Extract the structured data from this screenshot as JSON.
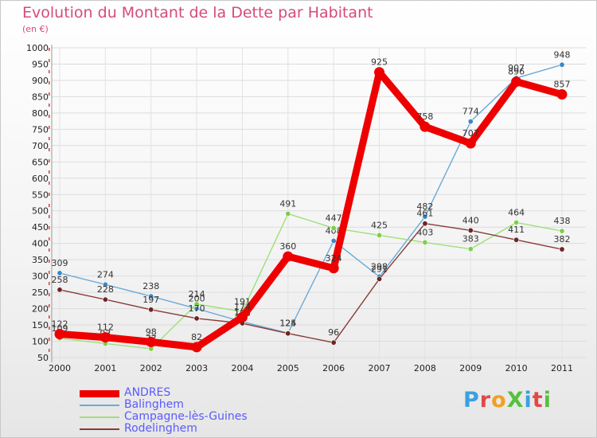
{
  "title": "Evolution du Montant de la Dette par Habitant",
  "subtitle": "(en €)",
  "logo": {
    "text": "ProXiti",
    "letter_colors": [
      "#3aa0e0",
      "#e04848",
      "#f0a020",
      "#58c040",
      "#3aa0e0",
      "#e04848",
      "#58c040"
    ]
  },
  "chart_data": {
    "type": "line",
    "title": "Evolution du Montant de la Dette par Habitant",
    "ylabel": "(en €)",
    "xlabel": "",
    "ylim": [
      50,
      1000
    ],
    "yticks": [
      50,
      100,
      150,
      200,
      250,
      300,
      350,
      400,
      450,
      500,
      550,
      600,
      650,
      700,
      750,
      800,
      850,
      900,
      950,
      1000
    ],
    "x": [
      "2000",
      "2001",
      "2002",
      "2003",
      "2004",
      "2005",
      "2006",
      "2007",
      "2008",
      "2009",
      "2010",
      "2011"
    ],
    "series": [
      {
        "name": "Balinghem",
        "color": "#6aaad8",
        "dot": "#3a88c8",
        "values": [
          309,
          274,
          238,
          200,
          160,
          125,
          408,
          298,
          482,
          774,
          907,
          948
        ]
      },
      {
        "name": "Campagne-lès-Guines",
        "color": "#9ee07a",
        "dot": "#7cd048",
        "values": [
          109,
          93,
          77,
          214,
          191,
          491,
          447,
          425,
          403,
          383,
          464,
          438
        ]
      },
      {
        "name": "Rodelinghem",
        "color": "#8a3a3a",
        "dot": "#6e2424",
        "values": [
          258,
          228,
          197,
          170,
          155,
          124,
          96,
          291,
          461,
          440,
          411,
          382
        ]
      },
      {
        "name": "ANDRES",
        "color": "#ee0000",
        "dot": "#ee0000",
        "bold": true,
        "values": [
          122,
          112,
          98,
          82,
          174,
          360,
          324,
          925,
          758,
          707,
          896,
          857
        ]
      }
    ],
    "legend": [
      "ANDRES",
      "Balinghem",
      "Campagne-lès-Guines",
      "Rodelinghem"
    ]
  }
}
